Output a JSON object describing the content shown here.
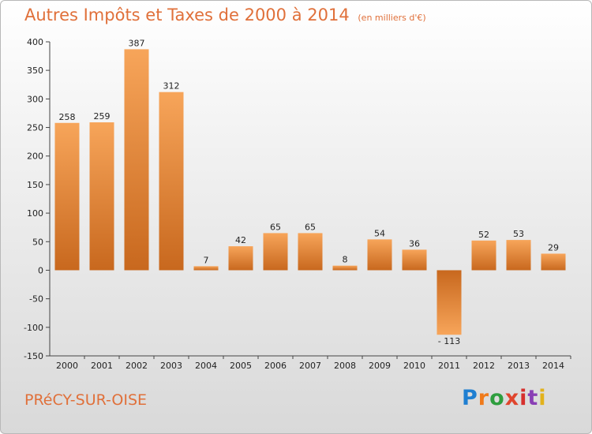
{
  "header": {
    "title": "Autres Impôts et Taxes de 2000 à 2014",
    "unit": "(en milliers d'€)"
  },
  "footer": {
    "place": "PRéCY-SUR-OISE",
    "logo": "Proxiti"
  },
  "colors": {
    "accent": "#e0703a",
    "bar_light": "#f7a55a",
    "bar_dark": "#c8681e"
  },
  "chart_data": {
    "type": "bar",
    "title": "Autres Impôts et Taxes de 2000 à 2014",
    "subtitle": "(en milliers d'€)",
    "xlabel": "",
    "ylabel": "",
    "categories": [
      "2000",
      "2001",
      "2002",
      "2003",
      "2004",
      "2005",
      "2006",
      "2007",
      "2008",
      "2009",
      "2010",
      "2011",
      "2012",
      "2013",
      "2014"
    ],
    "values": [
      258,
      259,
      387,
      312,
      7,
      42,
      65,
      65,
      8,
      54,
      36,
      -113,
      52,
      53,
      29
    ],
    "ylim": [
      -150,
      400
    ],
    "yticks": [
      -150,
      -100,
      -50,
      0,
      50,
      100,
      150,
      200,
      250,
      300,
      350,
      400
    ],
    "ytick_labels": [
      "-150",
      "-100",
      "-50",
      "0",
      "50",
      "100",
      "150",
      "200",
      "250",
      "300",
      "350",
      "400"
    ],
    "grid": false,
    "legend": "none"
  }
}
